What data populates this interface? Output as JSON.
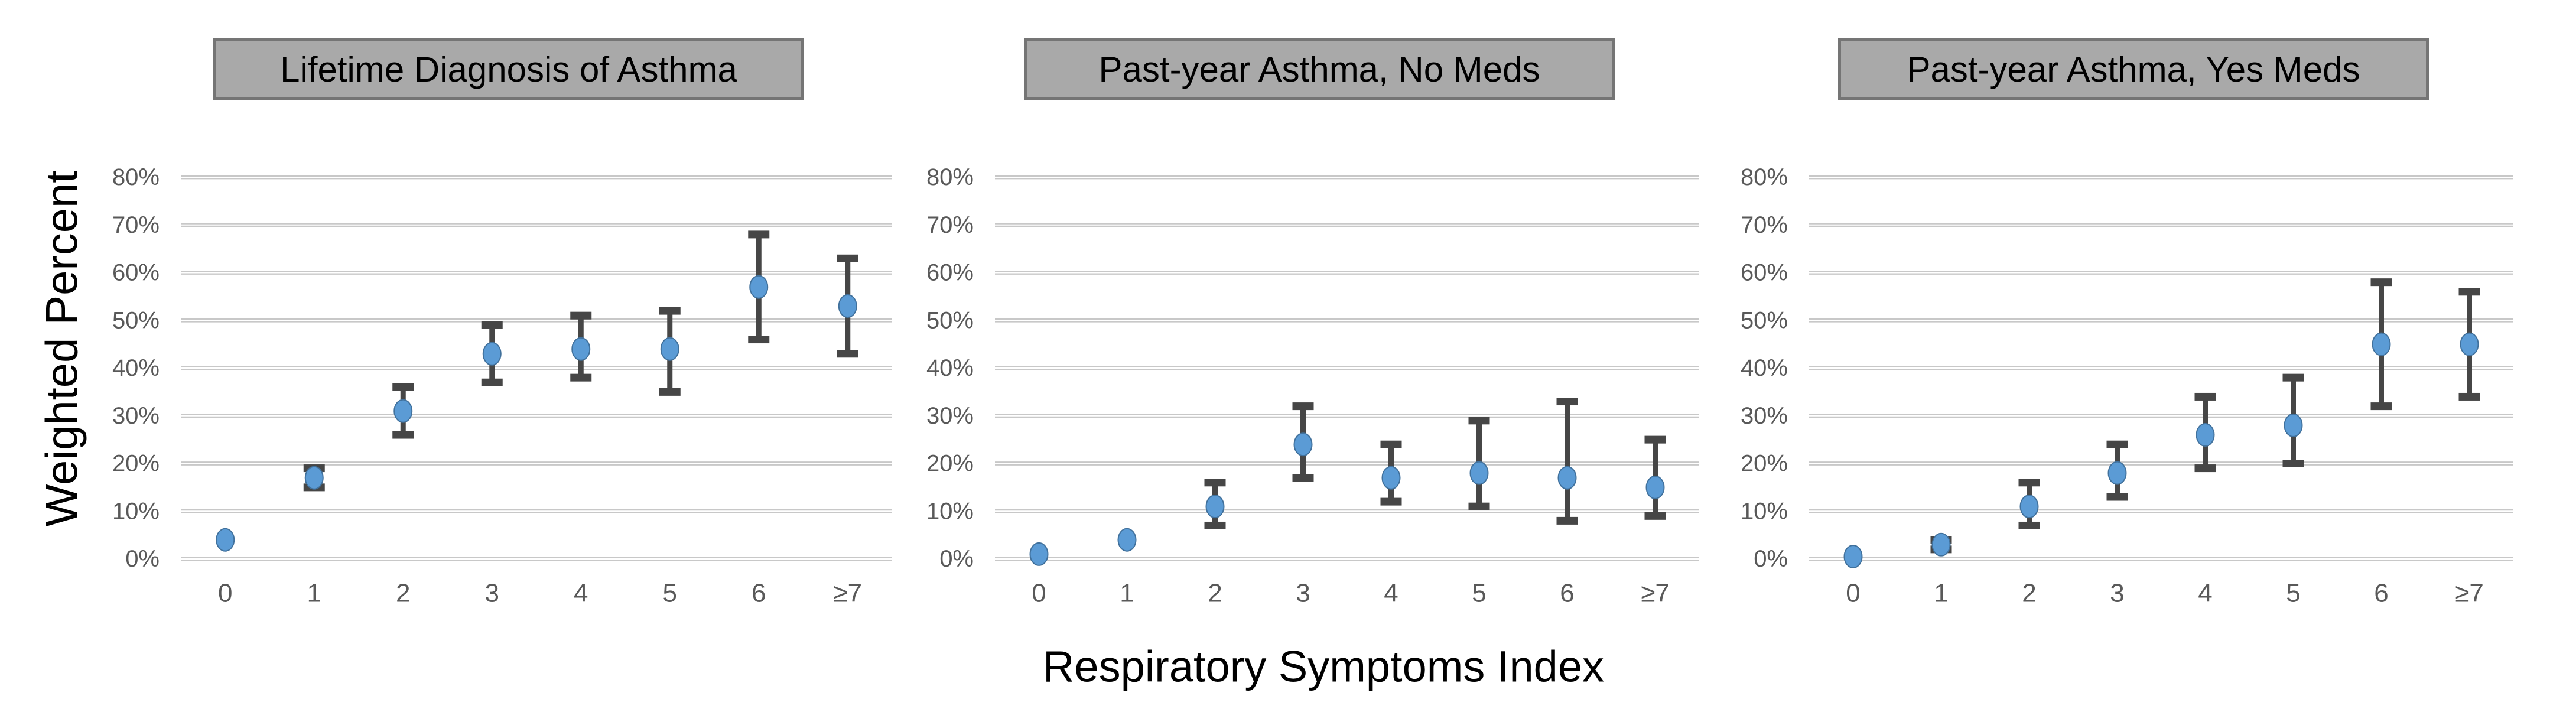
{
  "figure": {
    "background": "#FFFFFF",
    "y_axis": {
      "title": "Weighted Percent",
      "tick_labels": [
        "0%",
        "10%",
        "20%",
        "30%",
        "40%",
        "50%",
        "60%",
        "70%",
        "80%"
      ],
      "min": 0,
      "max": 80,
      "step": 10
    },
    "x_axis": {
      "title": "Respiratory Symptoms Index",
      "tick_labels": [
        "0",
        "1",
        "2",
        "3",
        "4",
        "5",
        "6",
        "≥7"
      ]
    }
  },
  "style": {
    "marker_fill": "#5B9BD5",
    "marker_stroke": "#41719C",
    "error_bar_color": "#464646",
    "gridline_color": "#C8C8C8",
    "tick_label_color": "#595959",
    "axis_title_color": "#000000",
    "title_box_fill": "#A9A9A9",
    "title_box_border": "#757575",
    "title_text_color": "#000000"
  },
  "chart_data": [
    {
      "type": "scatter",
      "title": "Lifetime Diagnosis of Asthma",
      "xlabel": "Respiratory Symptoms Index",
      "ylabel": "Weighted Percent",
      "categories": [
        "0",
        "1",
        "2",
        "3",
        "4",
        "5",
        "6",
        "≥7"
      ],
      "values": [
        4,
        17,
        31,
        43,
        44,
        44,
        57,
        53
      ],
      "ci_low": [
        4,
        15,
        26,
        37,
        38,
        35,
        46,
        43
      ],
      "ci_high": [
        4,
        19,
        36,
        49,
        51,
        52,
        68,
        63
      ],
      "ylim": [
        0,
        80
      ],
      "grid": true,
      "legend": false,
      "error_bars": true
    },
    {
      "type": "scatter",
      "title": "Past-year Asthma, No Meds",
      "xlabel": "Respiratory Symptoms Index",
      "ylabel": "Weighted Percent",
      "categories": [
        "0",
        "1",
        "2",
        "3",
        "4",
        "5",
        "6",
        "≥7"
      ],
      "values": [
        1,
        4,
        11,
        24,
        17,
        18,
        17,
        15
      ],
      "ci_low": [
        1,
        4,
        7,
        17,
        12,
        11,
        8,
        9
      ],
      "ci_high": [
        1,
        4,
        16,
        32,
        24,
        29,
        33,
        25
      ],
      "ylim": [
        0,
        80
      ],
      "grid": true,
      "legend": false,
      "error_bars": true
    },
    {
      "type": "scatter",
      "title": "Past-year Asthma, Yes Meds",
      "xlabel": "Respiratory Symptoms Index",
      "ylabel": "Weighted Percent",
      "categories": [
        "0",
        "1",
        "2",
        "3",
        "4",
        "5",
        "6",
        "≥7"
      ],
      "values": [
        0.5,
        3,
        11,
        18,
        26,
        28,
        45,
        45
      ],
      "ci_low": [
        0.5,
        2,
        7,
        13,
        19,
        20,
        32,
        34
      ],
      "ci_high": [
        0.5,
        4,
        16,
        24,
        34,
        38,
        58,
        56
      ],
      "ylim": [
        0,
        80
      ],
      "grid": true,
      "legend": false,
      "error_bars": true
    }
  ]
}
